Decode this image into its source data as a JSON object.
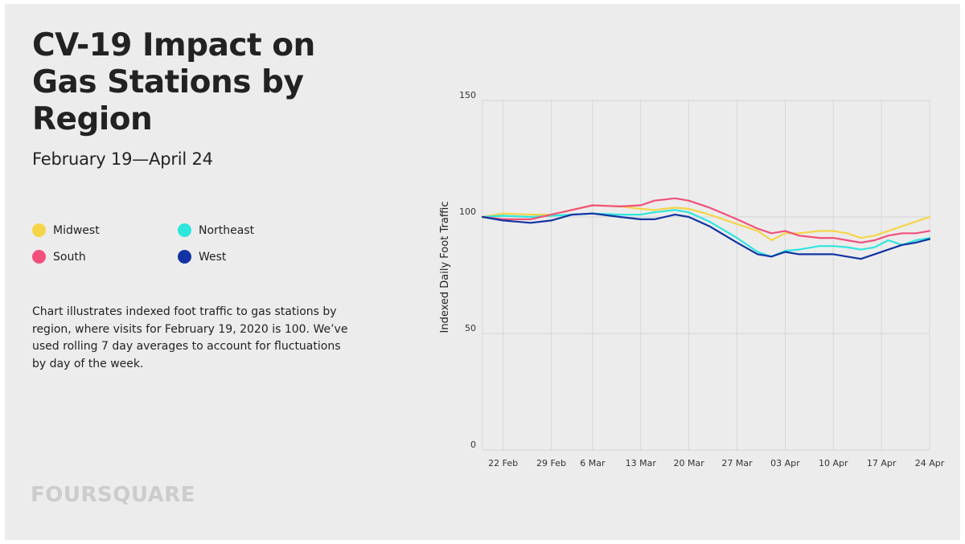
{
  "title": "CV-19 Impact on Gas Stations by Region",
  "subtitle": "February 19—April 24",
  "legend": [
    {
      "name": "Midwest",
      "color": "#f5d547"
    },
    {
      "name": "Northeast",
      "color": "#2ee6dd"
    },
    {
      "name": "South",
      "color": "#f2507a"
    },
    {
      "name": "West",
      "color": "#1233a3"
    }
  ],
  "description": "Chart illustrates indexed foot traffic to gas stations by region, where visits for February 19, 2020 is 100. We’ve used rolling 7 day averages to account for fluctuations by day of the week.",
  "brand": "FOURSQUARE",
  "chart_data": {
    "type": "line",
    "ylabel": "Indexed Daily Foot Traffic",
    "xlabel": "",
    "ylim": [
      0,
      150
    ],
    "yticks": [
      0,
      50,
      100,
      150
    ],
    "x_start": "2020-02-19",
    "x_end": "2020-04-24",
    "x_ticks": [
      "22 Feb",
      "29 Feb",
      "6 Mar",
      "13 Mar",
      "20 Mar",
      "27 Mar",
      "03 Apr",
      "10 Apr",
      "17 Apr",
      "24 Apr"
    ],
    "x_tick_dates": [
      "2020-02-22",
      "2020-02-29",
      "2020-03-06",
      "2020-03-13",
      "2020-03-20",
      "2020-03-27",
      "2020-04-03",
      "2020-04-10",
      "2020-04-17",
      "2020-04-24"
    ],
    "grid": true,
    "legend_placement": "left panel",
    "series": [
      {
        "name": "Midwest",
        "color": "#f5d547",
        "x": [
          "2020-02-19",
          "2020-02-22",
          "2020-02-26",
          "2020-02-29",
          "2020-03-03",
          "2020-03-06",
          "2020-03-10",
          "2020-03-13",
          "2020-03-15",
          "2020-03-18",
          "2020-03-20",
          "2020-03-23",
          "2020-03-27",
          "2020-03-30",
          "2020-04-01",
          "2020-04-03",
          "2020-04-05",
          "2020-04-08",
          "2020-04-10",
          "2020-04-12",
          "2020-04-14",
          "2020-04-16",
          "2020-04-18",
          "2020-04-20",
          "2020-04-22",
          "2020-04-24"
        ],
        "y": [
          100,
          101.5,
          101,
          101,
          103,
          105,
          104.5,
          103.5,
          103,
          104,
          103.5,
          101,
          97,
          94,
          90,
          93,
          93,
          94,
          94,
          93,
          91,
          92,
          94,
          96,
          98,
          100
        ]
      },
      {
        "name": "Northeast",
        "color": "#2ee6dd",
        "x": [
          "2020-02-19",
          "2020-02-22",
          "2020-02-26",
          "2020-02-29",
          "2020-03-03",
          "2020-03-06",
          "2020-03-10",
          "2020-03-13",
          "2020-03-15",
          "2020-03-18",
          "2020-03-20",
          "2020-03-23",
          "2020-03-27",
          "2020-03-30",
          "2020-04-01",
          "2020-04-03",
          "2020-04-05",
          "2020-04-08",
          "2020-04-10",
          "2020-04-12",
          "2020-04-14",
          "2020-04-16",
          "2020-04-18",
          "2020-04-20",
          "2020-04-22",
          "2020-04-24"
        ],
        "y": [
          100,
          100.5,
          100,
          100.5,
          101,
          101.5,
          101,
          101,
          102,
          103,
          102,
          98,
          91,
          85,
          83,
          85.5,
          86,
          87.5,
          87.5,
          87,
          86,
          87,
          90,
          88,
          90,
          91
        ]
      },
      {
        "name": "South",
        "color": "#f2507a",
        "x": [
          "2020-02-19",
          "2020-02-22",
          "2020-02-26",
          "2020-02-29",
          "2020-03-03",
          "2020-03-06",
          "2020-03-10",
          "2020-03-13",
          "2020-03-15",
          "2020-03-18",
          "2020-03-20",
          "2020-03-23",
          "2020-03-27",
          "2020-03-30",
          "2020-04-01",
          "2020-04-03",
          "2020-04-05",
          "2020-04-08",
          "2020-04-10",
          "2020-04-12",
          "2020-04-14",
          "2020-04-16",
          "2020-04-18",
          "2020-04-20",
          "2020-04-22",
          "2020-04-24"
        ],
        "y": [
          100,
          99,
          99,
          101,
          103,
          105,
          104.5,
          105,
          107,
          108,
          107,
          104,
          99,
          95,
          93,
          94,
          92,
          91,
          91,
          90,
          89,
          90,
          92,
          93,
          93,
          94
        ]
      },
      {
        "name": "West",
        "color": "#1233a3",
        "x": [
          "2020-02-19",
          "2020-02-22",
          "2020-02-26",
          "2020-02-29",
          "2020-03-03",
          "2020-03-06",
          "2020-03-10",
          "2020-03-13",
          "2020-03-15",
          "2020-03-18",
          "2020-03-20",
          "2020-03-23",
          "2020-03-27",
          "2020-03-30",
          "2020-04-01",
          "2020-04-03",
          "2020-04-05",
          "2020-04-08",
          "2020-04-10",
          "2020-04-12",
          "2020-04-14",
          "2020-04-16",
          "2020-04-18",
          "2020-04-20",
          "2020-04-22",
          "2020-04-24"
        ],
        "y": [
          100,
          98.5,
          97.5,
          98.5,
          101,
          101.5,
          100,
          99,
          99,
          101,
          100,
          96,
          89,
          84,
          83,
          85,
          84,
          84,
          84,
          83,
          82,
          84,
          86,
          88,
          89,
          90.5
        ]
      }
    ]
  }
}
